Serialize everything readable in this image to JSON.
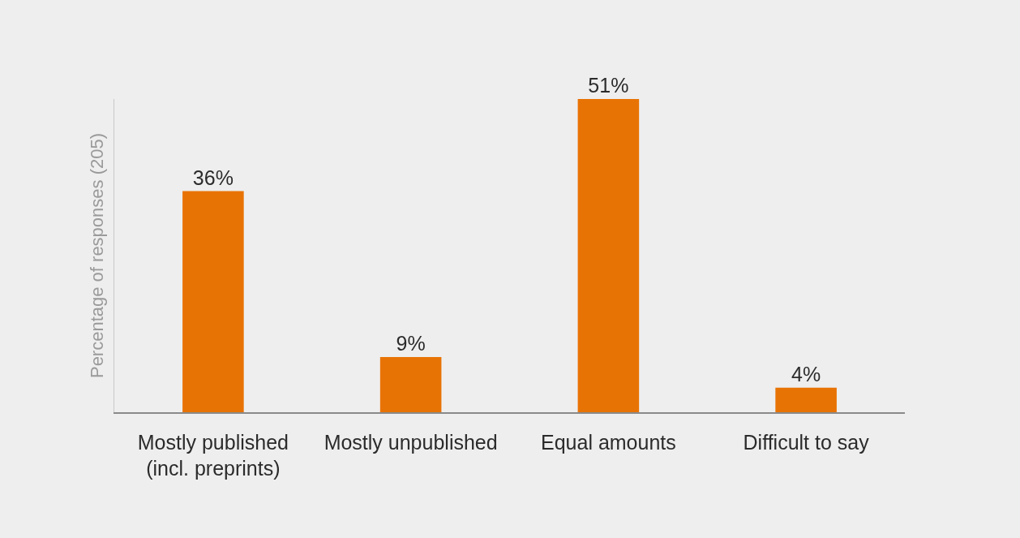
{
  "chart_data": {
    "type": "bar",
    "ylabel": "Percentage of responses (205)",
    "categories": [
      "Mostly published (incl. preprints)",
      "Mostly unpublished",
      "Equal amounts",
      "Difficult to say"
    ],
    "values": [
      36,
      9,
      51,
      4
    ],
    "value_labels": [
      "36%",
      "9%",
      "51%",
      "4%"
    ],
    "color": "#e87305"
  }
}
